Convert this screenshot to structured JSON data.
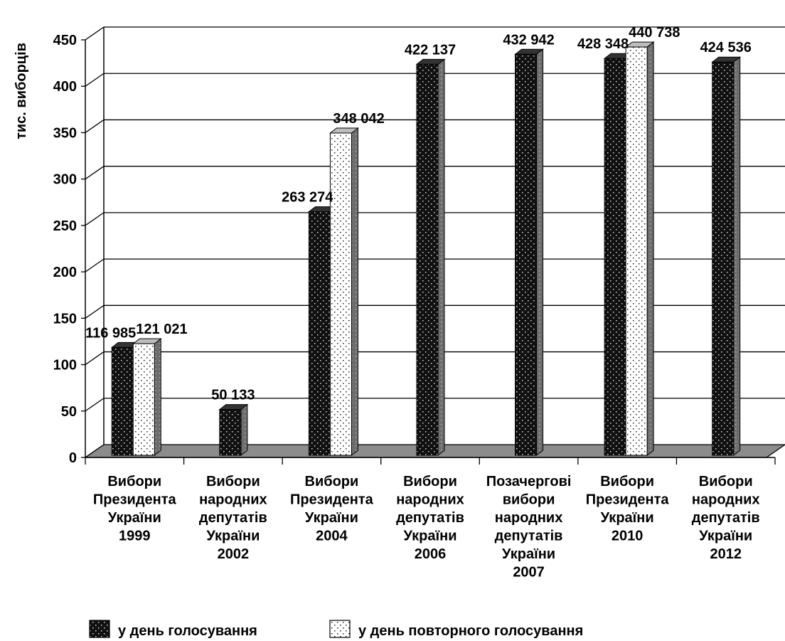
{
  "chart_data": {
    "type": "bar",
    "ylabel": "тис. виборців",
    "ylim": [
      0,
      450
    ],
    "yticks": [
      0,
      50,
      100,
      150,
      200,
      250,
      300,
      350,
      400,
      450
    ],
    "grid": true,
    "legend_position": "bottom",
    "categories": [
      [
        "Вибори",
        "Президента",
        "України",
        "1999"
      ],
      [
        "Вибори",
        "народних",
        "депутатів",
        "України",
        "2002"
      ],
      [
        "Вибори",
        "Президента",
        "України",
        "2004"
      ],
      [
        "Вибори",
        "народних",
        "депутатів",
        "України",
        "2006"
      ],
      [
        "Позачергові",
        "вибори",
        "народних",
        "депутатів",
        "України",
        "2007"
      ],
      [
        "Вибори",
        "Президента",
        "України",
        "2010"
      ],
      [
        "Вибори",
        "народних",
        "депутатів",
        "України",
        "2012"
      ]
    ],
    "series": [
      {
        "name": "у день голосування",
        "values": [
          116.985,
          50.133,
          263.274,
          422.137,
          432.942,
          428.348,
          424.536
        ],
        "labels": [
          "116 985",
          "50 133",
          "263 274",
          "422 137",
          "432 942",
          "428 348",
          "424 536"
        ]
      },
      {
        "name": "у день повторного голосування",
        "values": [
          121.021,
          null,
          348.042,
          null,
          null,
          440.738,
          null
        ],
        "labels": [
          "121 021",
          null,
          "348 042",
          null,
          null,
          "440 738",
          null
        ]
      }
    ],
    "colors": {
      "series1": "#111111",
      "series2": "#ffffff",
      "floor": "#8c8c8c",
      "bar_side": "#7a7a7a",
      "bar_top": "#bdbdbd"
    }
  }
}
